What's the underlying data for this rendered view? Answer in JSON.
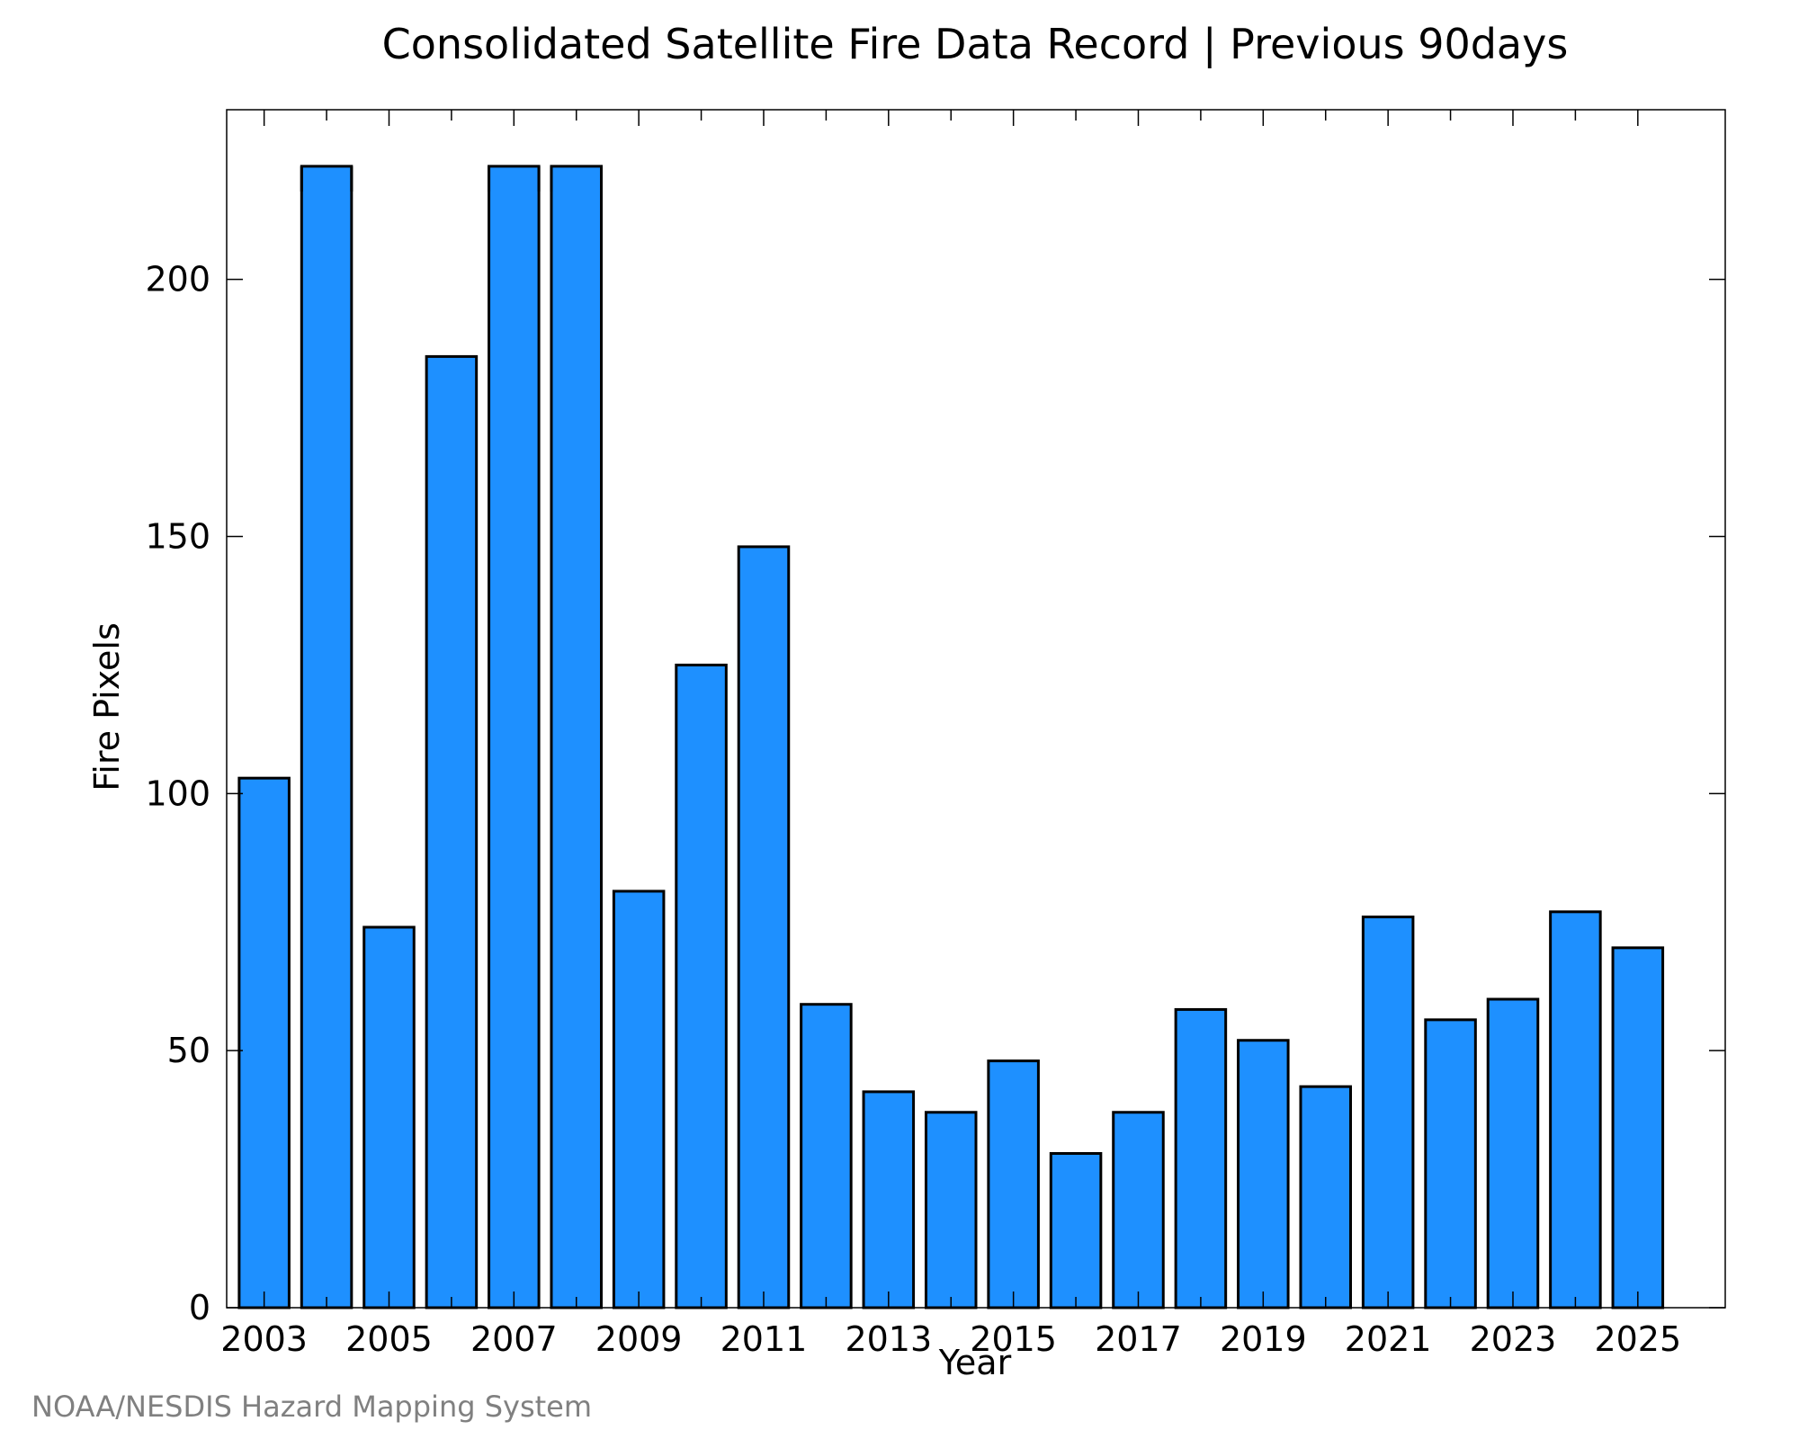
{
  "colors": {
    "bar_fill": "#1E90FF",
    "bar_stroke": "#000000",
    "axis": "#000000",
    "credit_text": "#808080",
    "background": "#FFFFFF"
  },
  "credit": "NOAA/NESDIS Hazard Mapping System",
  "chart_data": {
    "type": "bar",
    "title": "Consolidated Satellite Fire Data Record | Previous 90days",
    "xlabel": "Year",
    "ylabel": "Fire Pixels",
    "categories": [
      2003,
      2004,
      2005,
      2006,
      2007,
      2008,
      2009,
      2010,
      2011,
      2012,
      2013,
      2014,
      2015,
      2016,
      2017,
      2018,
      2019,
      2020,
      2021,
      2022,
      2023,
      2024,
      2025
    ],
    "values": [
      103,
      222,
      74,
      185,
      222,
      222,
      81,
      125,
      148,
      59,
      42,
      38,
      48,
      30,
      38,
      58,
      52,
      43,
      76,
      56,
      60,
      77,
      70
    ],
    "clipped_at_ylim_top_plot": [
      false,
      true,
      false,
      false,
      true,
      true,
      false,
      false,
      false,
      false,
      false,
      false,
      false,
      false,
      false,
      false,
      false,
      false,
      false,
      false,
      false,
      false,
      false
    ],
    "xlim": [
      2002.4,
      2026.4
    ],
    "ylim": [
      0,
      233
    ],
    "yticks": [
      0,
      50,
      100,
      150,
      200
    ],
    "xticks": [
      2003,
      2005,
      2007,
      2009,
      2011,
      2013,
      2015,
      2017,
      2019,
      2021,
      2023,
      2025
    ],
    "xminor_ticks": [
      2004,
      2006,
      2008,
      2010,
      2012,
      2014,
      2016,
      2018,
      2020,
      2022,
      2024
    ],
    "grid": false,
    "legend": "none"
  }
}
